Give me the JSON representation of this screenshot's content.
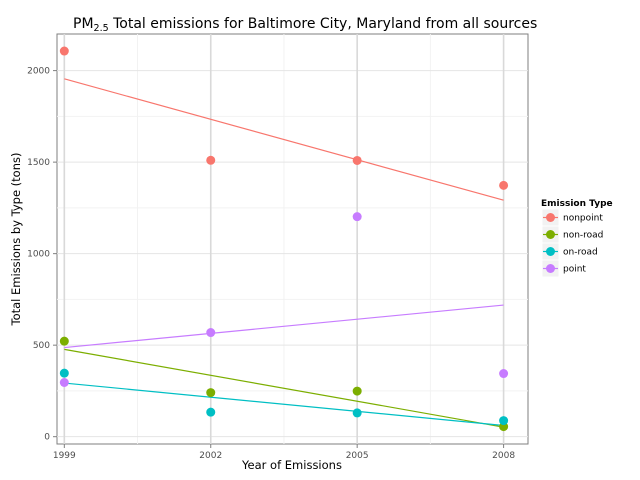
{
  "chart_data": {
    "type": "scatter",
    "title_prefix": "PM",
    "title_subscript": "2.5",
    "title_suffix": " Total emissions for Baltimore City, Maryland from all sources",
    "xlabel": "Year of Emissions",
    "ylabel": "Total Emissions by Type (tons)",
    "x": [
      1999,
      2002,
      2005,
      2008
    ],
    "xlim": [
      1998.85,
      2008.5
    ],
    "ylim": [
      -40,
      2200
    ],
    "x_ticks": [
      1999,
      2002,
      2005,
      2008
    ],
    "y_ticks": [
      0,
      500,
      1000,
      1500,
      2000
    ],
    "grid": true,
    "legend": {
      "title": "Emission Type",
      "placement": "right"
    },
    "series": [
      {
        "name": "nonpoint",
        "color": "#F8766D",
        "values": [
          2107,
          1510,
          1509,
          1373
        ],
        "trend": [
          1955,
          1292
        ]
      },
      {
        "name": "non-road",
        "color": "#7CAE00",
        "values": [
          522,
          241,
          249,
          55
        ],
        "trend": [
          477,
          52
        ]
      },
      {
        "name": "on-road",
        "color": "#00BFC4",
        "values": [
          347,
          134,
          130,
          88
        ],
        "trend": [
          293,
          61
        ]
      },
      {
        "name": "point",
        "color": "#C77CFF",
        "values": [
          296,
          569,
          1202,
          345
        ],
        "trend": [
          487,
          719
        ]
      }
    ]
  }
}
